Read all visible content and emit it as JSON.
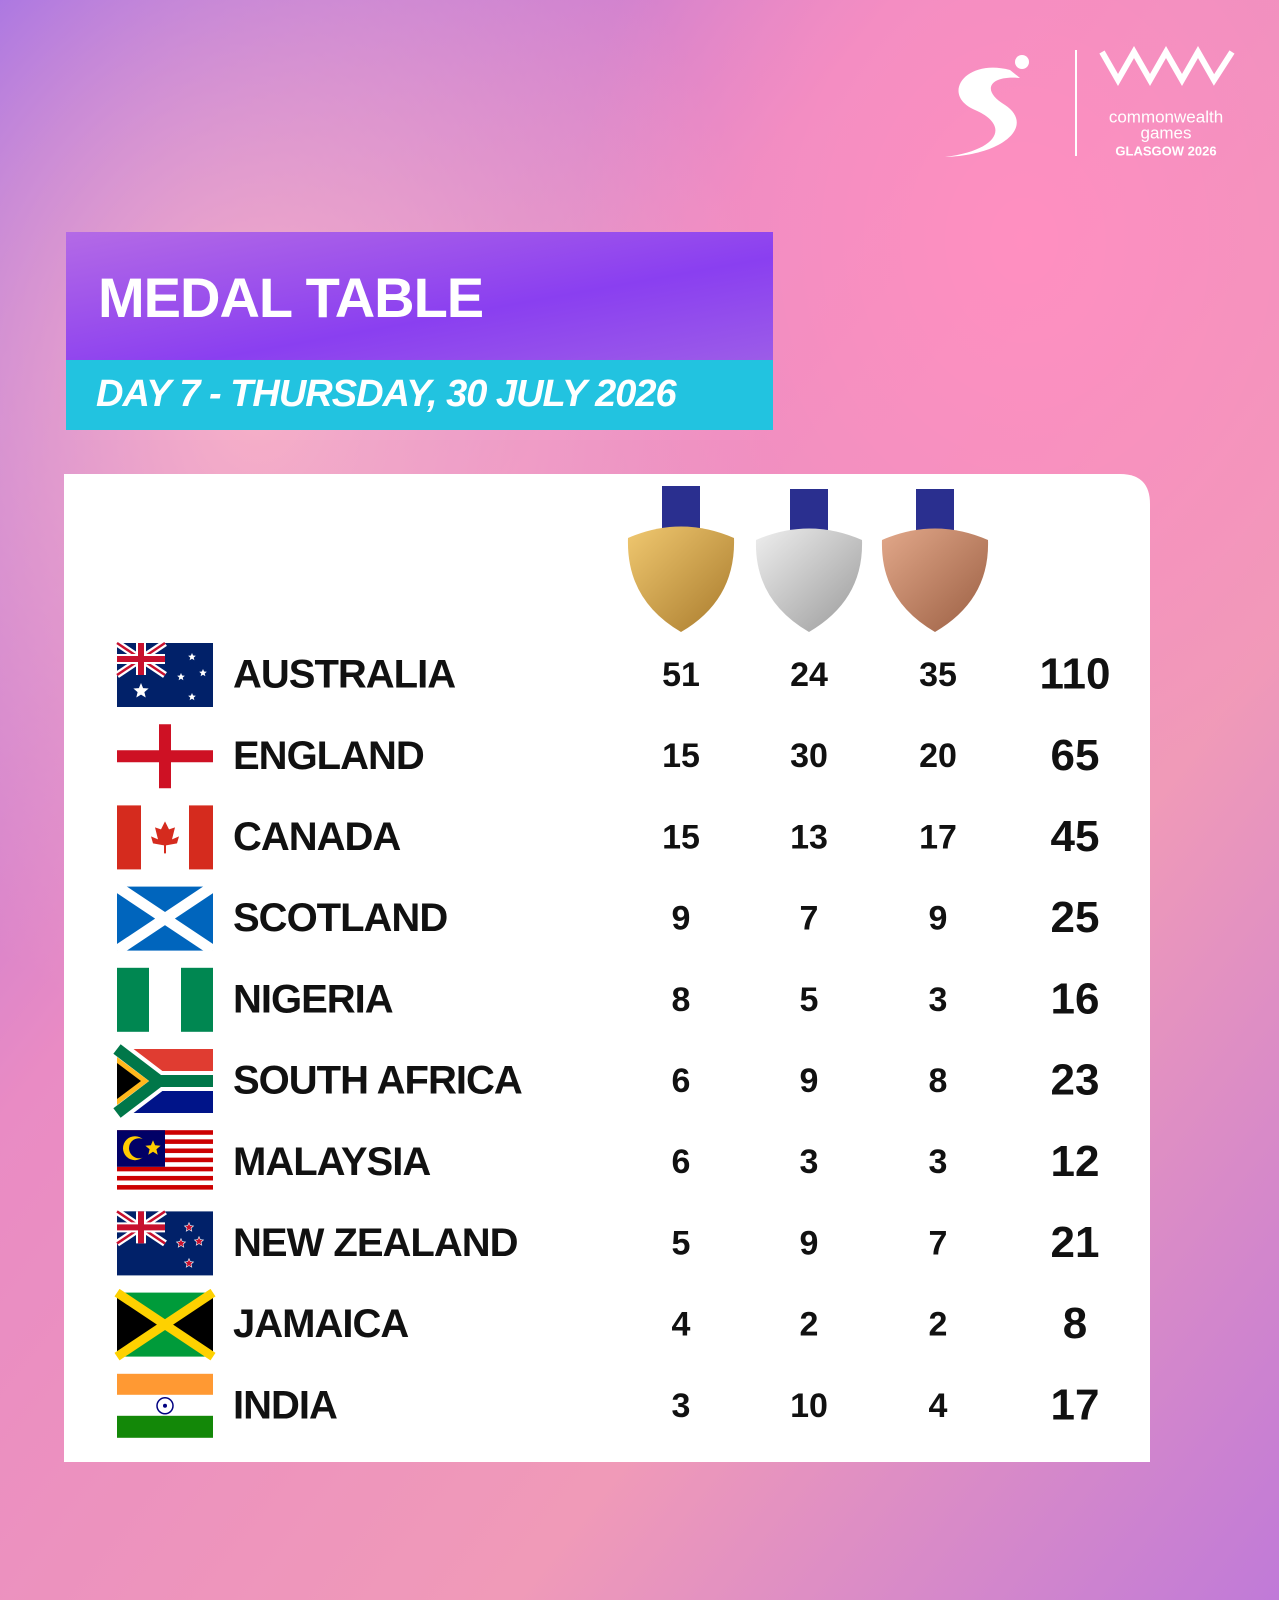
{
  "header": {
    "logo": {
      "line1": "commonwealth",
      "line2": "games",
      "line3": "GLASGOW 2026"
    }
  },
  "title": "MEDAL TABLE",
  "subtitle": "DAY 7 - THURSDAY, 30 JULY 2026",
  "table": {
    "rows": [
      {
        "country": "AUSTRALIA",
        "gold": 51,
        "silver": 24,
        "bronze": 35,
        "total": 110
      },
      {
        "country": "ENGLAND",
        "gold": 15,
        "silver": 30,
        "bronze": 20,
        "total": 65
      },
      {
        "country": "CANADA",
        "gold": 15,
        "silver": 13,
        "bronze": 17,
        "total": 45
      },
      {
        "country": "SCOTLAND",
        "gold": 9,
        "silver": 7,
        "bronze": 9,
        "total": 25
      },
      {
        "country": "NIGERIA",
        "gold": 8,
        "silver": 5,
        "bronze": 3,
        "total": 16
      },
      {
        "country": "SOUTH AFRICA",
        "gold": 6,
        "silver": 9,
        "bronze": 8,
        "total": 23
      },
      {
        "country": "MALAYSIA",
        "gold": 6,
        "silver": 3,
        "bronze": 3,
        "total": 12
      },
      {
        "country": "NEW ZEALAND",
        "gold": 5,
        "silver": 9,
        "bronze": 7,
        "total": 21
      },
      {
        "country": "JAMAICA",
        "gold": 4,
        "silver": 2,
        "bronze": 2,
        "total": 8
      },
      {
        "country": "INDIA",
        "gold": 3,
        "silver": 10,
        "bronze": 4,
        "total": 17
      }
    ]
  }
}
